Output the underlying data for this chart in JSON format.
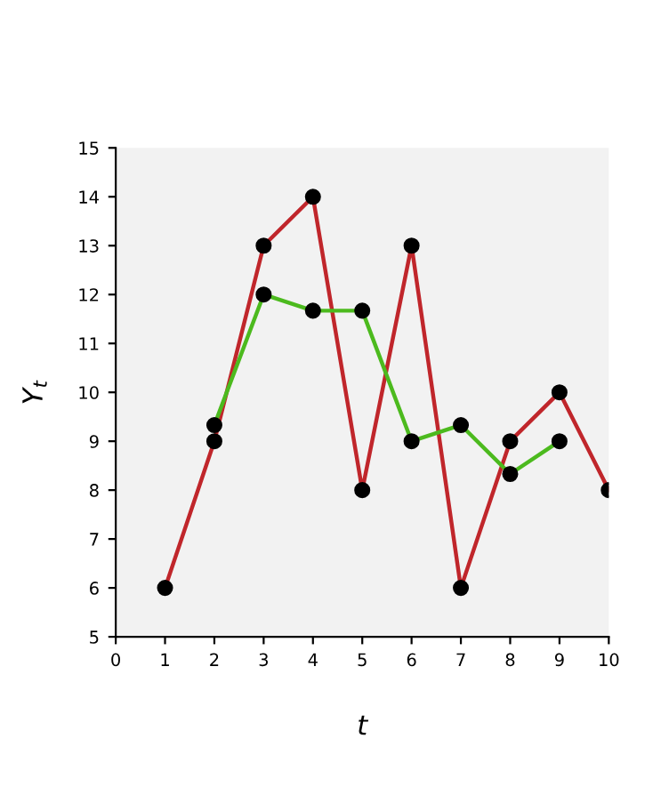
{
  "chart_data": {
    "type": "line",
    "xlabel": "t",
    "ylabel": "Y$_{t}$",
    "series": [
      {
        "color": "#c0262b",
        "x": [
          1,
          2,
          3,
          4,
          5,
          6,
          7,
          8,
          9,
          10
        ],
        "values": [
          6,
          9,
          13,
          14,
          8,
          13,
          6,
          9,
          10,
          8
        ]
      },
      {
        "color": "#4cba1e",
        "x": [
          2,
          3,
          4,
          5,
          6,
          7,
          8,
          9
        ],
        "values": [
          9.33,
          12,
          11.67,
          11.67,
          9,
          9.33,
          8.33,
          9
        ]
      }
    ],
    "xlim": [
      0,
      10
    ],
    "xticks": [
      0,
      1,
      2,
      3,
      4,
      5,
      6,
      7,
      8,
      9,
      10
    ],
    "ylim": [
      5,
      15
    ],
    "yticks": [
      5,
      6,
      7,
      8,
      9,
      10,
      11,
      12,
      13,
      14,
      15
    ],
    "marker": "circle",
    "grid": false,
    "legend": false
  }
}
